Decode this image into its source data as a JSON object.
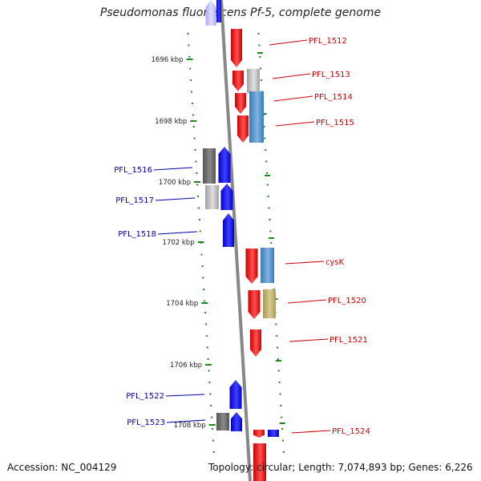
{
  "title": "Pseudomonas fluorescens Pf-5, complete genome",
  "footer": {
    "accession": "Accession: NC_004129",
    "topology": "Topology: circular; Length: 7,074,893 bp; Genes: 6,226"
  },
  "colors": {
    "forward": "#ff0000",
    "reverse": "#0000ff",
    "backbone": "#888888",
    "ticks": "#1a8a1a",
    "forward_label": "#cc0000",
    "reverse_label": "#0000aa"
  },
  "kbp_ticks": [
    "1696 kbp",
    "1698 kbp",
    "1700 kbp",
    "1702 kbp",
    "1704 kbp",
    "1706 kbp",
    "1708 kbp"
  ],
  "genes_forward": [
    {
      "label": "PFL_1512"
    },
    {
      "label": "PFL_1513"
    },
    {
      "label": "PFL_1514"
    },
    {
      "label": "PFL_1515"
    },
    {
      "label": "cysK"
    },
    {
      "label": "PFL_1520"
    },
    {
      "label": "PFL_1521"
    },
    {
      "label": "PFL_1524"
    }
  ],
  "genes_reverse": [
    {
      "label": "PFL_1516"
    },
    {
      "label": "PFL_1517"
    },
    {
      "label": "PFL_1518"
    },
    {
      "label": "PFL_1522"
    },
    {
      "label": "PFL_1523"
    }
  ]
}
